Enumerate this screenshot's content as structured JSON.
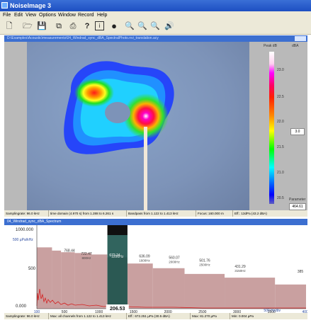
{
  "app": {
    "title": "NoiseImage 3"
  },
  "menu": [
    "File",
    "Edit",
    "View",
    "Options",
    "Window",
    "Record",
    "Help"
  ],
  "toolbar": {
    "icons": [
      "new-file-icon",
      "open-folder-icon",
      "save-icon",
      "copy-icon",
      "print-icon",
      "help-icon",
      "info-icon",
      "record-icon",
      "zoom-in-icon",
      "zoom-out-icon",
      "zoom-reset-icon",
      "speaker-icon"
    ]
  },
  "doc_window": {
    "title": "D:\\Examples\\Acoustic\\measurements\\04_Windrad_sync_dBA_SpectralPhoto.nvi_translation.acy"
  },
  "scale": {
    "header_left": "Peak dB",
    "header_right": "dBA",
    "labels": [
      "23.0",
      "22.5",
      "22.0",
      "21.5",
      "21.0",
      "20.5"
    ],
    "value_box": "3.0",
    "bottom_caption": "Parameter",
    "bottom_value": "464.61"
  },
  "status_top": {
    "samplingrate": "Samplingrate: 96.0 kHz",
    "time_domain": "time domain (4.970 s) from 1.288 to 6.261 s",
    "bandpass": "Bandpass from 1.122 to 1.413 kHz",
    "focus": "Focus: 160.000 m",
    "eff": "Eff.: 13dPa (43.2 dBA)"
  },
  "spectrum_window": {
    "title": "04_Windrad_sync_dBA_Spectrum"
  },
  "spectrum": {
    "y_ticks": [
      "1000.000",
      "500",
      "0.000"
    ],
    "y_unit": "500 µPa/kHz",
    "x_ticks": [
      "100",
      "500",
      "1000",
      "1500",
      "2000",
      "2500",
      "3000",
      "3500",
      "4000"
    ],
    "x_unit": "500 Hz/div",
    "selection_value": "206.53",
    "selection_band": "1250Hz",
    "band_labels": [
      {
        "value": "768.44",
        "band": ""
      },
      {
        "value": "722.47",
        "band": "800Hz"
      },
      {
        "value": "672.24",
        "band": "1250Hz"
      },
      {
        "value": "636.09",
        "band": "1600Hz"
      },
      {
        "value": "560.07",
        "band": "2000Hz"
      },
      {
        "value": "501.76",
        "band": "2500Hz"
      },
      {
        "value": "431.29",
        "band": "3150Hz"
      },
      {
        "value": "385",
        "band": ""
      }
    ]
  },
  "status_bottom": {
    "samplingrate": "Samplingrate: 96.0 kHz",
    "max": "Max: all channels from 1.122 to 1.413 kHz",
    "eff": "Eff.: 672.251 µPa (30.5 dBA)",
    "max2": "Max: 81.270 µPa",
    "min": "Min: 0.004 µPa"
  },
  "chart_data": {
    "type": "bar",
    "title": "04_Windrad_sync_dBA_Spectrum",
    "xlabel": "500 Hz/div",
    "ylabel": "500 µPa/kHz",
    "ylim": [
      0,
      1000
    ],
    "xlim": [
      100,
      4000
    ],
    "band_edges": [
      100,
      320,
      450,
      650,
      890,
      1120,
      1410,
      1780,
      2240,
      2820,
      3550,
      4000
    ],
    "band_values": [
      760,
      720,
      700,
      690,
      672,
      636,
      560,
      502,
      431,
      385,
      300
    ],
    "selected_band": [
      1122,
      1413
    ]
  },
  "colors": {
    "title_bar": "#1d4fc2",
    "doc_bar": "#3c6fd0",
    "bands": "#c9a0a0",
    "selection": "#154f48",
    "narrowband": "#d42020"
  }
}
